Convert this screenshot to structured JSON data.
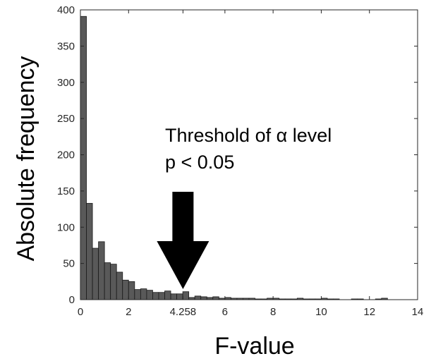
{
  "chart_data": {
    "type": "bar",
    "xlabel": "F-value",
    "ylabel": "Absolute frequency",
    "xlim": [
      0,
      14
    ],
    "ylim": [
      0,
      400
    ],
    "x_ticks": [
      0,
      2,
      4.258,
      6,
      8,
      10,
      12,
      14
    ],
    "x_tick_labels": [
      "0",
      "2",
      "4.258",
      "6",
      "8",
      "10",
      "12",
      "14"
    ],
    "y_ticks": [
      0,
      50,
      100,
      150,
      200,
      250,
      300,
      350,
      400
    ],
    "y_tick_labels": [
      "0",
      "50",
      "100",
      "150",
      "200",
      "250",
      "300",
      "350",
      "400"
    ],
    "bin_width": 0.25,
    "bin_starts": [
      0,
      0.25,
      0.5,
      0.75,
      1,
      1.25,
      1.5,
      1.75,
      2,
      2.25,
      2.5,
      2.75,
      3,
      3.25,
      3.5,
      3.75,
      4,
      4.25,
      4.5,
      4.75,
      5,
      5.25,
      5.5,
      5.75,
      6,
      6.25,
      6.5,
      6.75,
      7,
      7.25,
      7.5,
      7.75,
      8,
      8.25,
      8.5,
      8.75,
      9,
      9.25,
      9.5,
      9.75,
      10,
      10.25,
      10.5,
      10.75,
      11,
      11.25,
      11.5,
      11.75,
      12,
      12.25,
      12.5
    ],
    "values": [
      391,
      133,
      71,
      80,
      51,
      49,
      38,
      27,
      25,
      14,
      15,
      13,
      10,
      10,
      12,
      8,
      8,
      11,
      3,
      5,
      4,
      3,
      4,
      2,
      3,
      2,
      2,
      2,
      2,
      1,
      1,
      2,
      2,
      1,
      1,
      1,
      2,
      1,
      1,
      1,
      2,
      1,
      1,
      0,
      0,
      1,
      1,
      0,
      0,
      1,
      2
    ],
    "bar_color": "#595959",
    "grid": false,
    "annotation": {
      "line1": "Threshold of α level",
      "line2": "p < 0.05",
      "arrow_target_x": 4.258
    }
  }
}
